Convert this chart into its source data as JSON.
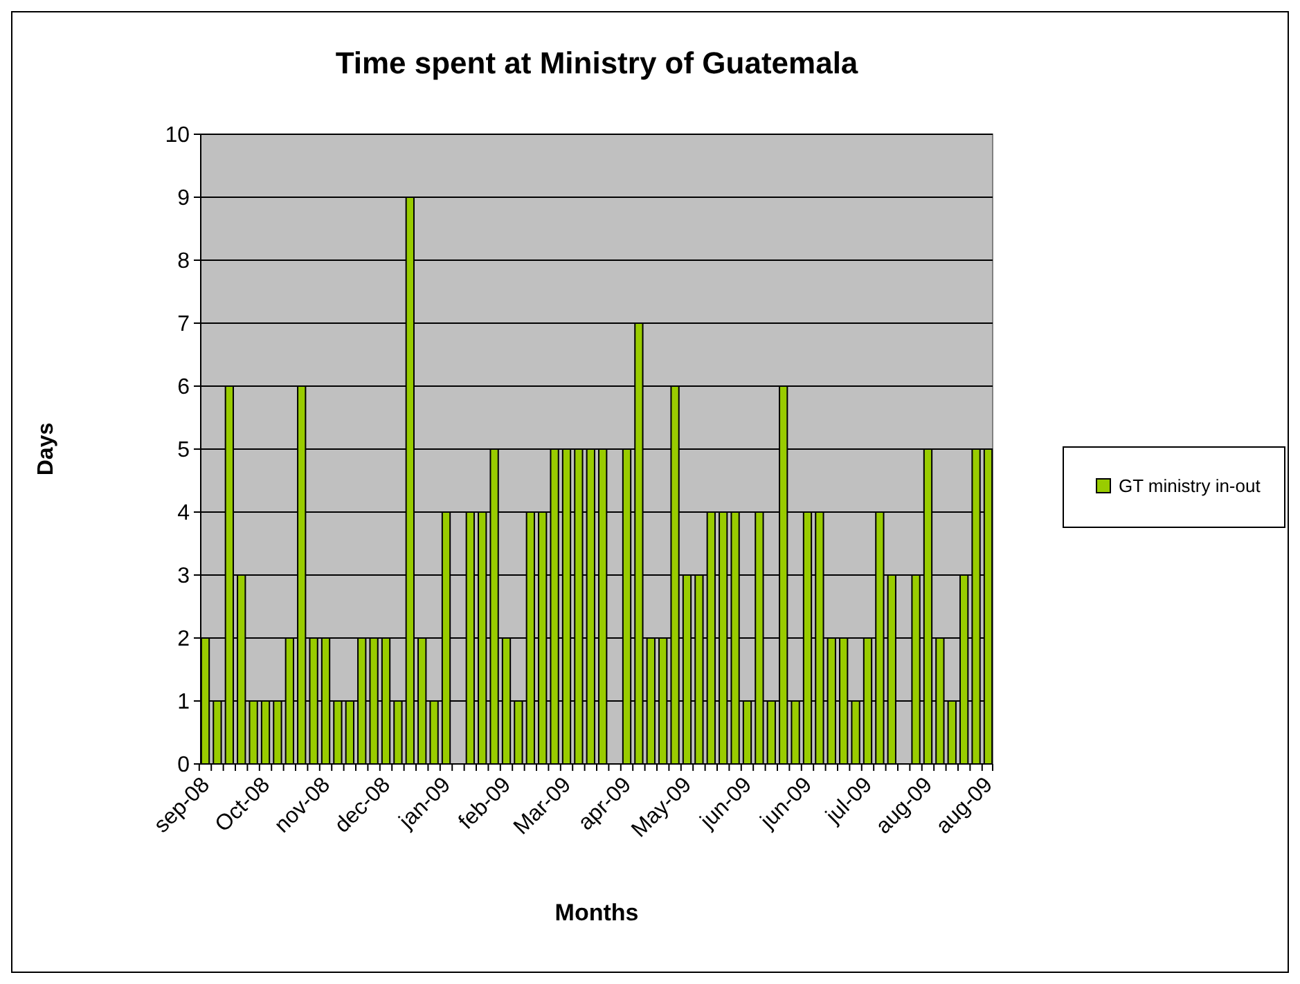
{
  "chart_data": {
    "type": "bar",
    "title": "Time spent at Ministry of Guatemala",
    "xlabel": "Months",
    "ylabel": "Days",
    "categories": [
      "sep-08",
      null,
      null,
      null,
      null,
      "Oct-08",
      null,
      null,
      null,
      null,
      "nov-08",
      null,
      null,
      null,
      null,
      "dec-08",
      null,
      null,
      null,
      null,
      "jan-09",
      null,
      null,
      null,
      null,
      "feb-09",
      null,
      null,
      null,
      null,
      "Mar-09",
      null,
      null,
      null,
      null,
      "apr-09",
      null,
      null,
      null,
      null,
      "May-09",
      null,
      null,
      null,
      null,
      "jun-09",
      null,
      null,
      null,
      null,
      "jun-09",
      null,
      null,
      null,
      null,
      "jul-09",
      null,
      null,
      null,
      null,
      "aug-09",
      null,
      null,
      null,
      null,
      "aug-09"
    ],
    "series": [
      {
        "name": "GT ministry in-out",
        "color": "#99cc00",
        "values": [
          2,
          1,
          6,
          3,
          1,
          1,
          1,
          2,
          6,
          2,
          2,
          1,
          1,
          2,
          2,
          2,
          1,
          9,
          2,
          1,
          4,
          null,
          4,
          4,
          5,
          2,
          1,
          4,
          4,
          5,
          5,
          5,
          5,
          5,
          null,
          5,
          7,
          2,
          2,
          6,
          3,
          3,
          4,
          4,
          4,
          1,
          4,
          1,
          6,
          1,
          4,
          4,
          2,
          2,
          1,
          2,
          4,
          3,
          null,
          3,
          5,
          2,
          1,
          3,
          5,
          5
        ]
      }
    ],
    "ylim": [
      0,
      10
    ],
    "yticks": [
      0,
      1,
      2,
      3,
      4,
      5,
      6,
      7,
      8,
      9,
      10
    ],
    "grid": "y",
    "legend": "right"
  }
}
